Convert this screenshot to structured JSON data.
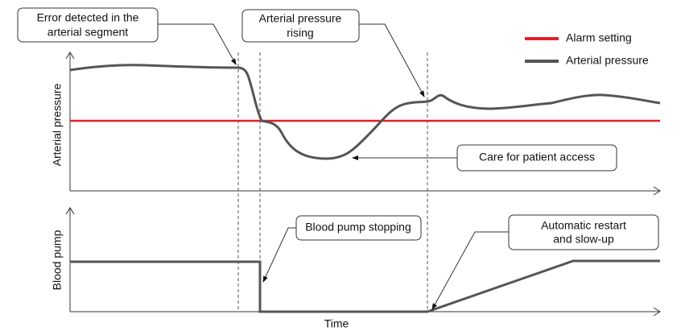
{
  "legend": [
    "Alarm setting",
    "Arterial pressure"
  ],
  "axes": {
    "top_y": "Arterial pressure",
    "bottom_y": "Blood pump",
    "x": "Time"
  },
  "callouts": [
    {
      "lines": [
        "Error detected in the",
        "arterial segment"
      ]
    },
    {
      "lines": [
        "Arterial pressure",
        "rising"
      ]
    },
    {
      "lines": [
        "Care for patient access"
      ]
    },
    {
      "lines": [
        "Blood pump stopping"
      ]
    },
    {
      "lines": [
        "Automatic restart",
        "and slow-up"
      ]
    }
  ]
}
